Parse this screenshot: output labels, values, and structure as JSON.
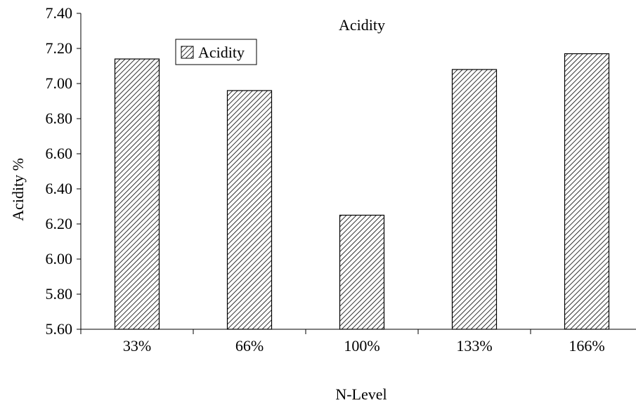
{
  "chart_data": {
    "type": "bar",
    "title": "Acidity",
    "xlabel": "N-Level",
    "ylabel": "Acidity %",
    "categories": [
      "33%",
      "66%",
      "100%",
      "133%",
      "166%"
    ],
    "series": [
      {
        "name": "Acidity",
        "values": [
          7.14,
          6.96,
          6.25,
          7.08,
          7.17
        ]
      }
    ],
    "ylim": [
      5.6,
      7.4
    ],
    "yticks": [
      "5.60",
      "5.80",
      "6.00",
      "6.20",
      "6.40",
      "6.60",
      "6.80",
      "7.00",
      "7.20",
      "7.40"
    ],
    "grid": false,
    "legend": "top-left",
    "pattern": "diagonal-hatch"
  }
}
